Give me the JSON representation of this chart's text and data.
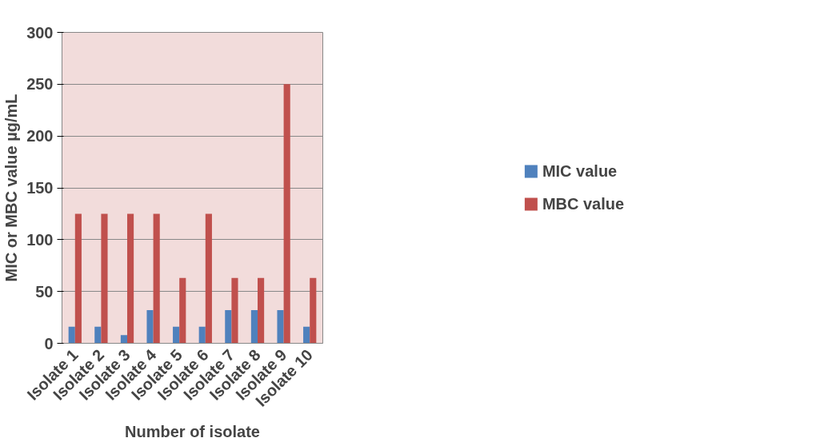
{
  "chart_data": {
    "type": "bar",
    "xlabel": "Number of isolate",
    "ylabel": "MIC or MBC value µg/mL",
    "categories": [
      "Isolate 1",
      "Isolate 2",
      "Isolate 3",
      "Isolate 4",
      "Isolate 5",
      "Isolate 6",
      "Isolate 7",
      "Isolate 8",
      "Isolate 9",
      "Isolate 10"
    ],
    "series": [
      {
        "name": "MIC value",
        "color": "#4f81bd",
        "values": [
          16,
          16,
          8,
          32,
          16,
          16,
          32,
          32,
          32,
          16
        ]
      },
      {
        "name": "MBC value",
        "color": "#c0504d",
        "values": [
          125,
          125,
          125,
          125,
          63,
          125,
          63,
          63,
          250,
          63
        ]
      }
    ],
    "ylim": [
      0,
      300
    ],
    "yticks": [
      0,
      50,
      100,
      150,
      200,
      250,
      300
    ],
    "grid": "y",
    "legend": "right"
  }
}
